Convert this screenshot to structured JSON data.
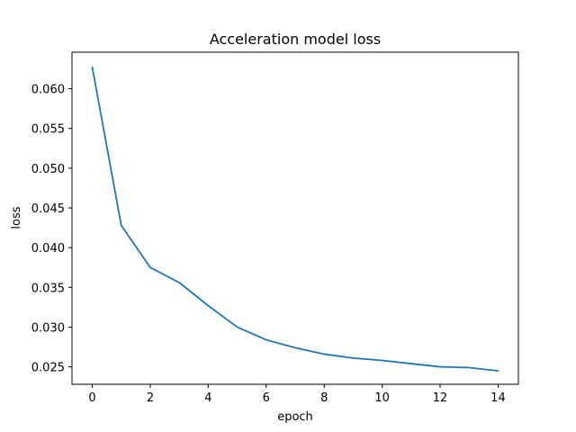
{
  "chart_data": {
    "type": "line",
    "title": "Acceleration model loss",
    "xlabel": "epoch",
    "ylabel": "loss",
    "xlim": [
      -0.7,
      14.7
    ],
    "ylim": [
      0.0228,
      0.0646
    ],
    "grid": false,
    "x_ticks": [
      0,
      2,
      4,
      6,
      8,
      10,
      12,
      14
    ],
    "x_tick_labels": [
      "0",
      "2",
      "4",
      "6",
      "8",
      "10",
      "12",
      "14"
    ],
    "y_ticks": [
      0.025,
      0.03,
      0.035,
      0.04,
      0.045,
      0.05,
      0.055,
      0.06
    ],
    "y_tick_labels": [
      "0.025",
      "0.030",
      "0.035",
      "0.040",
      "0.045",
      "0.050",
      "0.055",
      "0.060"
    ],
    "series": [
      {
        "color": "#1f77b4",
        "x": [
          0,
          1,
          2,
          3,
          4,
          5,
          6,
          7,
          8,
          9,
          10,
          11,
          12,
          13,
          14
        ],
        "y": [
          0.0627,
          0.0428,
          0.0375,
          0.0356,
          0.0327,
          0.03,
          0.0284,
          0.0274,
          0.0266,
          0.0261,
          0.0258,
          0.0254,
          0.025,
          0.0249,
          0.0245
        ]
      }
    ]
  }
}
